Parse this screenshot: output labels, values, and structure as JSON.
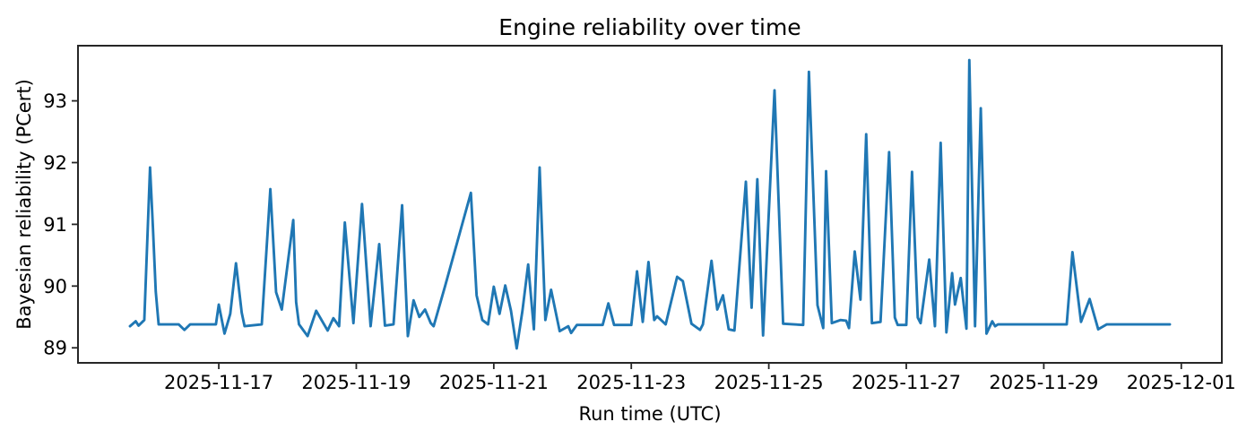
{
  "chart": {
    "title": "Engine reliability over time",
    "xlabel": "Run time (UTC)",
    "ylabel": "Bayesian reliability (PCert)"
  },
  "chart_data": {
    "type": "line",
    "title": "Engine reliability over time",
    "xlabel": "Run time (UTC)",
    "ylabel": "Bayesian reliability (PCert)",
    "line_color": "#1f77b4",
    "spine_color": "#262626",
    "background": "#ffffff",
    "grid": false,
    "legend": null,
    "x_tick_labels": [
      "2025-11-17",
      "2025-11-19",
      "2025-11-21",
      "2025-11-23",
      "2025-11-25",
      "2025-11-27",
      "2025-11-29",
      "2025-12-01"
    ],
    "y_tick_labels": [
      "89",
      "90",
      "91",
      "92",
      "93"
    ],
    "y_ticks": [
      89,
      90,
      91,
      92,
      93
    ],
    "x_range_note": "axis auto-scaled with 5% margins around data extent",
    "ylim_approx": [
      88.76,
      93.89
    ],
    "series_name": "Bayesian reliability (PCert)",
    "points": [
      [
        "2025-11-15 17:00",
        89.35
      ],
      [
        "2025-11-15 19:00",
        89.43
      ],
      [
        "2025-11-15 20:00",
        89.36
      ],
      [
        "2025-11-15 22:00",
        89.45
      ],
      [
        "2025-11-16 00:00",
        91.92
      ],
      [
        "2025-11-16 01:00",
        90.96
      ],
      [
        "2025-11-16 02:00",
        89.91
      ],
      [
        "2025-11-16 03:00",
        89.38
      ],
      [
        "2025-11-16 10:00",
        89.38
      ],
      [
        "2025-11-16 12:00",
        89.29
      ],
      [
        "2025-11-16 14:00",
        89.38
      ],
      [
        "2025-11-16 23:00",
        89.38
      ],
      [
        "2025-11-17 00:00",
        89.7
      ],
      [
        "2025-11-17 02:00",
        89.23
      ],
      [
        "2025-11-17 04:00",
        89.55
      ],
      [
        "2025-11-17 06:00",
        90.37
      ],
      [
        "2025-11-17 08:00",
        89.57
      ],
      [
        "2025-11-17 09:00",
        89.35
      ],
      [
        "2025-11-17 15:00",
        89.38
      ],
      [
        "2025-11-17 18:00",
        91.57
      ],
      [
        "2025-11-17 20:00",
        89.9
      ],
      [
        "2025-11-17 22:00",
        89.62
      ],
      [
        "2025-11-18 02:00",
        91.07
      ],
      [
        "2025-11-18 03:00",
        89.74
      ],
      [
        "2025-11-18 04:00",
        89.38
      ],
      [
        "2025-11-18 07:00",
        89.19
      ],
      [
        "2025-11-18 10:00",
        89.6
      ],
      [
        "2025-11-18 14:00",
        89.28
      ],
      [
        "2025-11-18 16:00",
        89.48
      ],
      [
        "2025-11-18 18:00",
        89.35
      ],
      [
        "2025-11-18 20:00",
        91.03
      ],
      [
        "2025-11-18 23:00",
        89.4
      ],
      [
        "2025-11-19 02:00",
        91.33
      ],
      [
        "2025-11-19 05:00",
        89.35
      ],
      [
        "2025-11-19 08:00",
        90.68
      ],
      [
        "2025-11-19 10:00",
        89.36
      ],
      [
        "2025-11-19 13:00",
        89.38
      ],
      [
        "2025-11-19 16:00",
        91.31
      ],
      [
        "2025-11-19 18:00",
        89.19
      ],
      [
        "2025-11-19 20:00",
        89.77
      ],
      [
        "2025-11-19 22:00",
        89.5
      ],
      [
        "2025-11-20 00:00",
        89.62
      ],
      [
        "2025-11-20 02:00",
        89.4
      ],
      [
        "2025-11-20 03:00",
        89.35
      ],
      [
        "2025-11-20 07:00",
        90.0
      ],
      [
        "2025-11-20 16:00",
        91.51
      ],
      [
        "2025-11-20 18:00",
        89.85
      ],
      [
        "2025-11-20 20:00",
        89.45
      ],
      [
        "2025-11-20 22:00",
        89.38
      ],
      [
        "2025-11-21 00:00",
        89.99
      ],
      [
        "2025-11-21 02:00",
        89.55
      ],
      [
        "2025-11-21 04:00",
        90.01
      ],
      [
        "2025-11-21 06:00",
        89.6
      ],
      [
        "2025-11-21 08:00",
        88.99
      ],
      [
        "2025-11-21 10:00",
        89.6
      ],
      [
        "2025-11-21 12:00",
        90.35
      ],
      [
        "2025-11-21 14:00",
        89.3
      ],
      [
        "2025-11-21 16:00",
        91.92
      ],
      [
        "2025-11-21 18:00",
        89.45
      ],
      [
        "2025-11-21 20:00",
        89.94
      ],
      [
        "2025-11-21 23:00",
        89.27
      ],
      [
        "2025-11-22 02:00",
        89.35
      ],
      [
        "2025-11-22 03:00",
        89.24
      ],
      [
        "2025-11-22 05:00",
        89.37
      ],
      [
        "2025-11-22 14:00",
        89.37
      ],
      [
        "2025-11-22 16:00",
        89.72
      ],
      [
        "2025-11-22 18:00",
        89.37
      ],
      [
        "2025-11-23 00:00",
        89.37
      ],
      [
        "2025-11-23 02:00",
        90.24
      ],
      [
        "2025-11-23 04:00",
        89.42
      ],
      [
        "2025-11-23 06:00",
        90.39
      ],
      [
        "2025-11-23 08:00",
        89.45
      ],
      [
        "2025-11-23 09:00",
        89.51
      ],
      [
        "2025-11-23 12:00",
        89.38
      ],
      [
        "2025-11-23 16:00",
        90.15
      ],
      [
        "2025-11-23 18:00",
        90.08
      ],
      [
        "2025-11-23 21:00",
        89.39
      ],
      [
        "2025-11-24 00:00",
        89.29
      ],
      [
        "2025-11-24 01:00",
        89.38
      ],
      [
        "2025-11-24 04:00",
        90.41
      ],
      [
        "2025-11-24 06:00",
        89.62
      ],
      [
        "2025-11-24 08:00",
        89.85
      ],
      [
        "2025-11-24 10:00",
        89.3
      ],
      [
        "2025-11-24 12:00",
        89.28
      ],
      [
        "2025-11-24 16:00",
        91.69
      ],
      [
        "2025-11-24 18:00",
        89.65
      ],
      [
        "2025-11-24 20:00",
        91.73
      ],
      [
        "2025-11-24 22:00",
        89.2
      ],
      [
        "2025-11-25 02:00",
        93.17
      ],
      [
        "2025-11-25 05:00",
        89.39
      ],
      [
        "2025-11-25 12:00",
        89.37
      ],
      [
        "2025-11-25 14:00",
        93.47
      ],
      [
        "2025-11-25 17:00",
        89.69
      ],
      [
        "2025-11-25 19:00",
        89.32
      ],
      [
        "2025-11-25 20:00",
        91.86
      ],
      [
        "2025-11-25 22:00",
        89.4
      ],
      [
        "2025-11-26 01:00",
        89.45
      ],
      [
        "2025-11-26 03:00",
        89.44
      ],
      [
        "2025-11-26 04:00",
        89.32
      ],
      [
        "2025-11-26 06:00",
        90.56
      ],
      [
        "2025-11-26 08:00",
        89.78
      ],
      [
        "2025-11-26 10:00",
        92.46
      ],
      [
        "2025-11-26 12:00",
        89.4
      ],
      [
        "2025-11-26 15:00",
        89.42
      ],
      [
        "2025-11-26 18:00",
        92.17
      ],
      [
        "2025-11-26 20:00",
        89.49
      ],
      [
        "2025-11-26 21:00",
        89.37
      ],
      [
        "2025-11-27 00:00",
        89.37
      ],
      [
        "2025-11-27 02:00",
        91.85
      ],
      [
        "2025-11-27 04:00",
        89.49
      ],
      [
        "2025-11-27 05:00",
        89.4
      ],
      [
        "2025-11-27 08:00",
        90.43
      ],
      [
        "2025-11-27 10:00",
        89.35
      ],
      [
        "2025-11-27 12:00",
        92.32
      ],
      [
        "2025-11-27 14:00",
        89.25
      ],
      [
        "2025-11-27 16:00",
        90.21
      ],
      [
        "2025-11-27 17:00",
        89.7
      ],
      [
        "2025-11-27 19:00",
        90.13
      ],
      [
        "2025-11-27 21:00",
        89.31
      ],
      [
        "2025-11-27 22:00",
        93.66
      ],
      [
        "2025-11-28 00:00",
        89.35
      ],
      [
        "2025-11-28 02:00",
        92.88
      ],
      [
        "2025-11-28 04:00",
        89.23
      ],
      [
        "2025-11-28 06:00",
        89.43
      ],
      [
        "2025-11-28 07:00",
        89.35
      ],
      [
        "2025-11-28 08:00",
        89.38
      ],
      [
        "2025-11-29 08:00",
        89.38
      ],
      [
        "2025-11-29 10:00",
        90.55
      ],
      [
        "2025-11-29 13:00",
        89.42
      ],
      [
        "2025-11-29 16:00",
        89.79
      ],
      [
        "2025-11-29 19:00",
        89.3
      ],
      [
        "2025-11-29 22:00",
        89.38
      ],
      [
        "2025-11-30 20:00",
        89.38
      ]
    ]
  }
}
